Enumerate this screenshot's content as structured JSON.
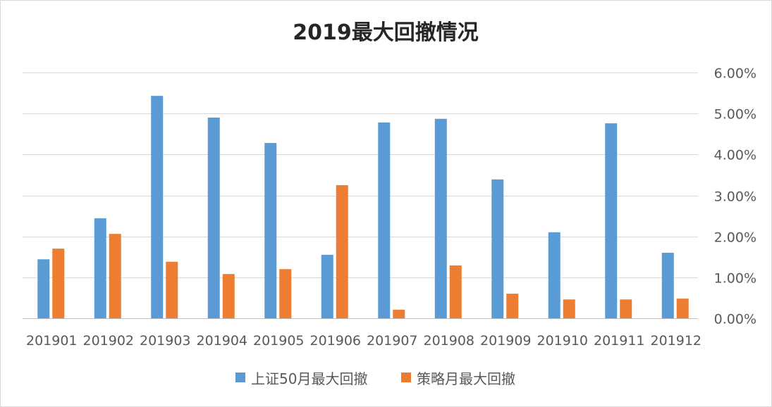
{
  "chart_data": {
    "type": "bar",
    "title": "2019最大回撤情况",
    "xlabel": "",
    "ylabel": "",
    "ylim": [
      0,
      6
    ],
    "y_ticks": [
      "0.00%",
      "1.00%",
      "2.00%",
      "3.00%",
      "4.00%",
      "5.00%",
      "6.00%"
    ],
    "y_axis_position": "right",
    "grid": true,
    "legend_position": "bottom",
    "categories": [
      "201901",
      "201902",
      "201903",
      "201904",
      "201905",
      "201906",
      "201907",
      "201908",
      "201909",
      "201910",
      "201911",
      "201912"
    ],
    "series": [
      {
        "name": "上证50月最大回撤",
        "color": "#5B9BD5",
        "values": [
          1.44,
          2.44,
          5.43,
          4.9,
          4.28,
          1.55,
          4.78,
          4.87,
          3.39,
          2.1,
          4.76,
          1.6
        ]
      },
      {
        "name": "策略月最大回撤",
        "color": "#ED7D31",
        "values": [
          1.7,
          2.06,
          1.38,
          1.08,
          1.2,
          3.25,
          0.21,
          1.29,
          0.6,
          0.46,
          0.46,
          0.48
        ]
      }
    ]
  }
}
